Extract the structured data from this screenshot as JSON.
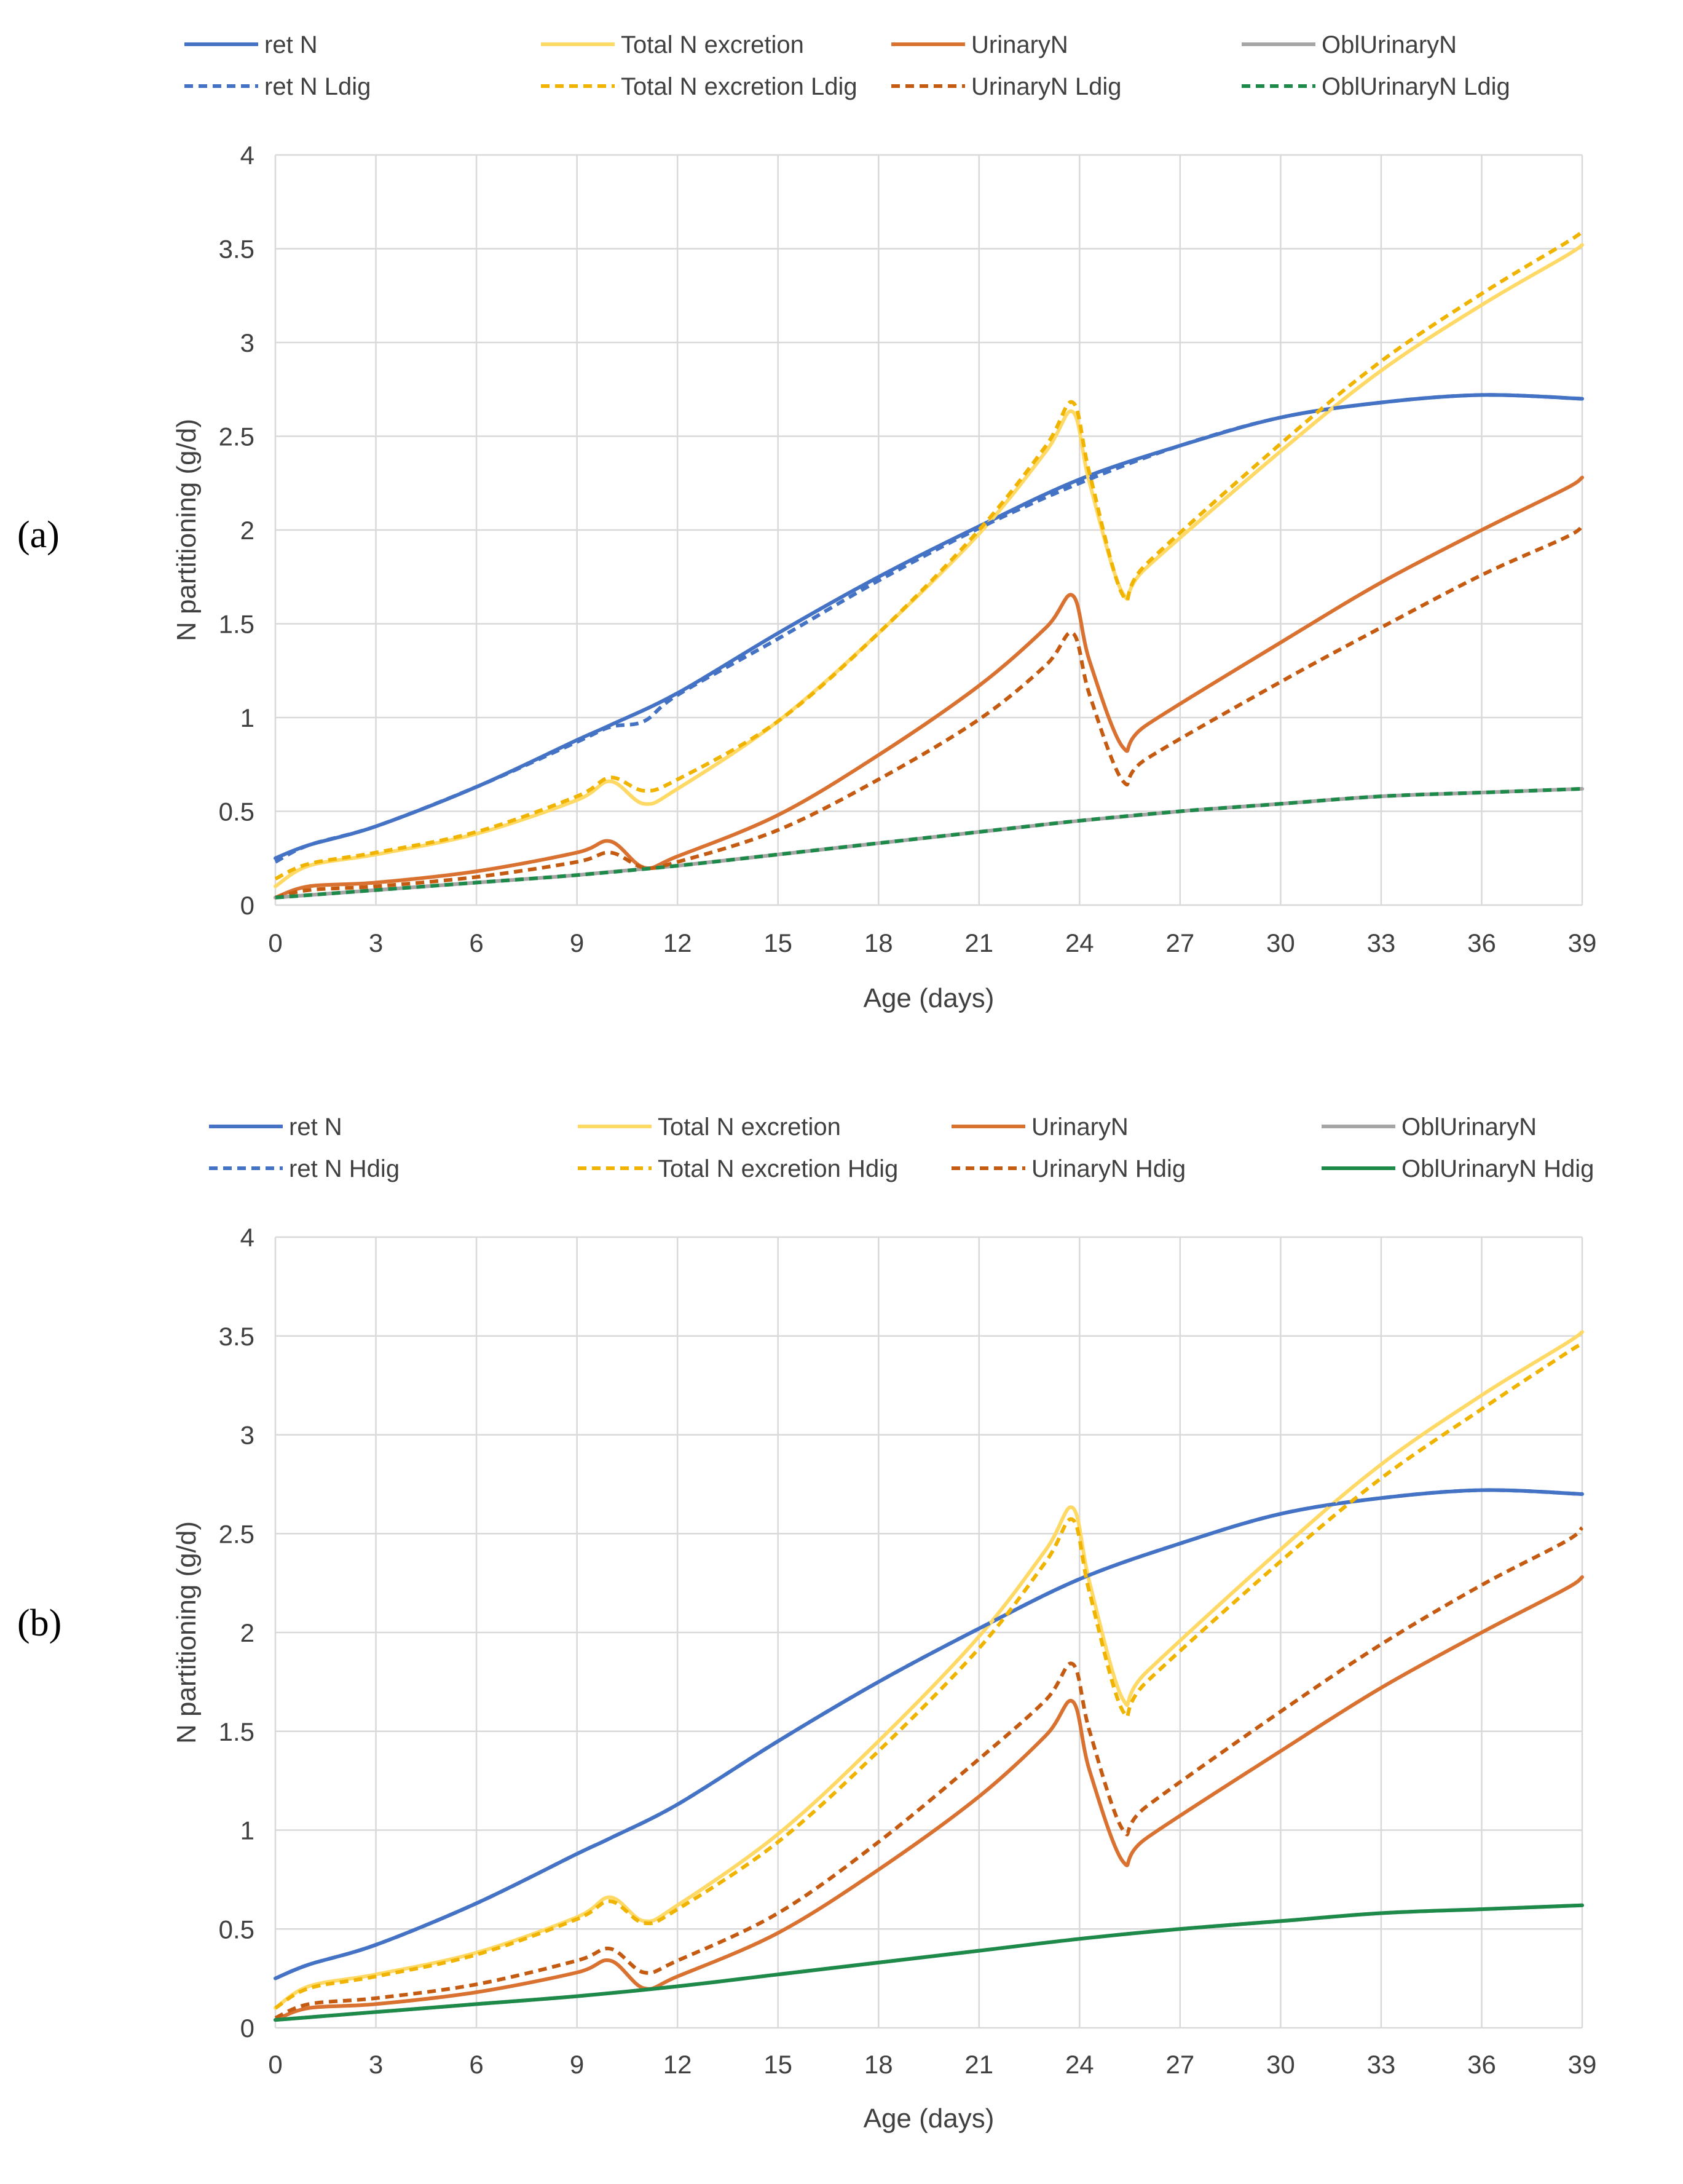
{
  "chart_data": [
    {
      "type": "line",
      "panel_label": "(a)",
      "xlabel": "Age (days)",
      "ylabel": "N partitioning (g/d)",
      "xlim": [
        0,
        39
      ],
      "ylim": [
        0,
        4
      ],
      "x_ticks": [
        "0",
        "3",
        "6",
        "9",
        "12",
        "15",
        "18",
        "21",
        "24",
        "27",
        "30",
        "33",
        "36",
        "39"
      ],
      "y_ticks": [
        "0",
        "0.5",
        "1",
        "1.5",
        "2",
        "2.5",
        "3",
        "3.5",
        "4"
      ],
      "grid": true,
      "legend_position": "top",
      "legend": [
        "ret N",
        "Total N excretion",
        "UrinaryN",
        "OblUrinaryN",
        "ret N Ldig",
        "Total N excretion Ldig",
        "UrinaryN Ldig",
        "OblUrinaryN Ldig"
      ],
      "series": [
        {
          "name": "ret N",
          "color": "#4472c4",
          "dash": false,
          "x": [
            0,
            1,
            3,
            6,
            9,
            10,
            12,
            15,
            18,
            21,
            24,
            27,
            30,
            33,
            36,
            39
          ],
          "y": [
            0.25,
            0.32,
            0.42,
            0.63,
            0.88,
            0.96,
            1.13,
            1.45,
            1.75,
            2.02,
            2.27,
            2.45,
            2.6,
            2.68,
            2.72,
            2.7
          ]
        },
        {
          "name": "Total N excretion",
          "color": "#ffd966",
          "dash": false,
          "x": [
            0,
            1,
            3,
            6,
            9,
            10,
            11,
            12,
            15,
            18,
            21,
            23,
            23.8,
            24.3,
            25.3,
            26,
            30,
            33,
            36,
            38.5,
            39
          ],
          "y": [
            0.1,
            0.21,
            0.27,
            0.38,
            0.56,
            0.66,
            0.54,
            0.62,
            0.98,
            1.45,
            1.98,
            2.42,
            2.63,
            2.25,
            1.66,
            1.8,
            2.42,
            2.85,
            3.2,
            3.46,
            3.52
          ]
        },
        {
          "name": "UrinaryN",
          "color": "#d97231",
          "dash": false,
          "x": [
            0,
            1,
            3,
            6,
            9,
            10,
            11,
            12,
            15,
            18,
            21,
            23,
            23.8,
            24.3,
            25.3,
            26,
            30,
            33,
            36,
            38.5,
            39
          ],
          "y": [
            0.04,
            0.1,
            0.12,
            0.18,
            0.28,
            0.34,
            0.2,
            0.26,
            0.48,
            0.8,
            1.17,
            1.48,
            1.65,
            1.3,
            0.84,
            0.96,
            1.4,
            1.72,
            2.0,
            2.22,
            2.28
          ]
        },
        {
          "name": "OblUrinaryN",
          "color": "#a5a5a5",
          "dash": false,
          "x": [
            0,
            3,
            6,
            9,
            12,
            15,
            18,
            21,
            24,
            27,
            30,
            33,
            36,
            39
          ],
          "y": [
            0.04,
            0.08,
            0.12,
            0.16,
            0.21,
            0.27,
            0.33,
            0.39,
            0.45,
            0.5,
            0.54,
            0.58,
            0.6,
            0.62
          ]
        },
        {
          "name": "ret N Ldig",
          "color": "#4472c4",
          "dash": true,
          "x": [
            0,
            1,
            3,
            6,
            9,
            10,
            11,
            12,
            15,
            18,
            21,
            24,
            27,
            30,
            33,
            36,
            39
          ],
          "y": [
            0.23,
            0.32,
            0.42,
            0.63,
            0.87,
            0.95,
            0.98,
            1.12,
            1.42,
            1.73,
            2.01,
            2.25,
            2.45,
            2.6,
            2.68,
            2.72,
            2.7
          ]
        },
        {
          "name": "Total N excretion Ldig",
          "color": "#f0b400",
          "dash": true,
          "x": [
            0,
            1,
            3,
            6,
            9,
            10,
            11,
            12,
            15,
            18,
            21,
            23,
            23.8,
            24.3,
            25.3,
            26,
            30,
            33,
            36,
            38.5,
            39
          ],
          "y": [
            0.14,
            0.22,
            0.28,
            0.39,
            0.58,
            0.68,
            0.61,
            0.67,
            0.98,
            1.45,
            2.0,
            2.45,
            2.68,
            2.3,
            1.65,
            1.82,
            2.46,
            2.9,
            3.26,
            3.53,
            3.59
          ]
        },
        {
          "name": "UrinaryN Ldig",
          "color": "#c55a11",
          "dash": true,
          "x": [
            0,
            1,
            3,
            6,
            9,
            10,
            11,
            12,
            15,
            18,
            21,
            23,
            23.8,
            24.3,
            25.3,
            26,
            30,
            33,
            36,
            38.5,
            39
          ],
          "y": [
            0.04,
            0.08,
            0.1,
            0.15,
            0.23,
            0.28,
            0.2,
            0.23,
            0.4,
            0.67,
            0.99,
            1.28,
            1.45,
            1.12,
            0.66,
            0.78,
            1.19,
            1.48,
            1.76,
            1.96,
            2.02
          ]
        },
        {
          "name": "OblUrinaryN Ldig",
          "color": "#1e8a4a",
          "dash": true,
          "x": [
            0,
            3,
            6,
            9,
            12,
            15,
            18,
            21,
            24,
            27,
            30,
            33,
            36,
            39
          ],
          "y": [
            0.04,
            0.08,
            0.12,
            0.16,
            0.21,
            0.27,
            0.33,
            0.39,
            0.45,
            0.5,
            0.54,
            0.58,
            0.6,
            0.62
          ]
        }
      ]
    },
    {
      "type": "line",
      "panel_label": "(b)",
      "xlabel": "Age (days)",
      "ylabel": "N partitioning (g/d)",
      "xlim": [
        0,
        39
      ],
      "ylim": [
        0,
        4
      ],
      "x_ticks": [
        "0",
        "3",
        "6",
        "9",
        "12",
        "15",
        "18",
        "21",
        "24",
        "27",
        "30",
        "33",
        "36",
        "39"
      ],
      "y_ticks": [
        "0",
        "0.5",
        "1",
        "1.5",
        "2",
        "2.5",
        "3",
        "3.5",
        "4"
      ],
      "grid": true,
      "legend_position": "top",
      "legend": [
        "ret N",
        "Total N excretion",
        "UrinaryN",
        "OblUrinaryN",
        "ret N Hdig",
        "Total N excretion Hdig",
        "UrinaryN Hdig",
        "OblUrinaryN Hdig"
      ],
      "series": [
        {
          "name": "ret N",
          "color": "#4472c4",
          "dash": false,
          "x": [
            0,
            1,
            3,
            6,
            9,
            10,
            12,
            15,
            18,
            21,
            24,
            27,
            30,
            33,
            36,
            39
          ],
          "y": [
            0.25,
            0.32,
            0.42,
            0.63,
            0.88,
            0.96,
            1.13,
            1.45,
            1.75,
            2.02,
            2.27,
            2.45,
            2.6,
            2.68,
            2.72,
            2.7
          ]
        },
        {
          "name": "Total N excretion",
          "color": "#ffd966",
          "dash": false,
          "x": [
            0,
            1,
            3,
            6,
            9,
            10,
            11,
            12,
            15,
            18,
            21,
            23,
            23.8,
            24.3,
            25.3,
            26,
            30,
            33,
            36,
            38.5,
            39
          ],
          "y": [
            0.1,
            0.21,
            0.27,
            0.38,
            0.56,
            0.66,
            0.54,
            0.62,
            0.98,
            1.45,
            1.98,
            2.42,
            2.63,
            2.25,
            1.66,
            1.8,
            2.42,
            2.85,
            3.2,
            3.46,
            3.52
          ]
        },
        {
          "name": "UrinaryN",
          "color": "#d97231",
          "dash": false,
          "x": [
            0,
            1,
            3,
            6,
            9,
            10,
            11,
            12,
            15,
            18,
            21,
            23,
            23.8,
            24.3,
            25.3,
            26,
            30,
            33,
            36,
            38.5,
            39
          ],
          "y": [
            0.04,
            0.1,
            0.12,
            0.18,
            0.28,
            0.34,
            0.2,
            0.26,
            0.48,
            0.8,
            1.17,
            1.48,
            1.65,
            1.3,
            0.84,
            0.96,
            1.4,
            1.72,
            2.0,
            2.22,
            2.28
          ]
        },
        {
          "name": "OblUrinaryN",
          "color": "#a5a5a5",
          "dash": false,
          "x": [
            0,
            3,
            6,
            9,
            12,
            15,
            18,
            21,
            24,
            27,
            30,
            33,
            36,
            39
          ],
          "y": [
            0.04,
            0.08,
            0.12,
            0.16,
            0.21,
            0.27,
            0.33,
            0.39,
            0.45,
            0.5,
            0.54,
            0.58,
            0.6,
            0.62
          ]
        },
        {
          "name": "ret N Hdig",
          "color": "#4472c4",
          "dash": true,
          "x": [
            0,
            1,
            3,
            6,
            9,
            10,
            12,
            15,
            18,
            21,
            24,
            27,
            30,
            33,
            36,
            39
          ],
          "y": [
            0.25,
            0.32,
            0.42,
            0.63,
            0.88,
            0.96,
            1.13,
            1.45,
            1.75,
            2.02,
            2.27,
            2.45,
            2.6,
            2.68,
            2.72,
            2.7
          ]
        },
        {
          "name": "Total N excretion Hdig",
          "color": "#f0b400",
          "dash": true,
          "x": [
            0,
            1,
            3,
            6,
            9,
            10,
            11,
            12,
            15,
            18,
            21,
            23,
            23.8,
            24.3,
            25.3,
            26,
            30,
            33,
            36,
            38.5,
            39
          ],
          "y": [
            0.1,
            0.2,
            0.26,
            0.37,
            0.55,
            0.64,
            0.53,
            0.6,
            0.94,
            1.4,
            1.92,
            2.36,
            2.57,
            2.2,
            1.6,
            1.75,
            2.36,
            2.78,
            3.13,
            3.41,
            3.46
          ]
        },
        {
          "name": "UrinaryN Hdig",
          "color": "#c55a11",
          "dash": true,
          "x": [
            0,
            1,
            3,
            6,
            9,
            10,
            11,
            12,
            15,
            18,
            21,
            23,
            23.8,
            24.3,
            25.3,
            26,
            30,
            33,
            36,
            38.5,
            39
          ],
          "y": [
            0.05,
            0.12,
            0.15,
            0.22,
            0.34,
            0.4,
            0.28,
            0.34,
            0.58,
            0.94,
            1.36,
            1.66,
            1.84,
            1.5,
            1.0,
            1.12,
            1.6,
            1.94,
            2.24,
            2.46,
            2.53
          ]
        },
        {
          "name": "OblUrinaryN Hdig",
          "color": "#1e8a4a",
          "dash": false,
          "x": [
            0,
            3,
            6,
            9,
            12,
            15,
            18,
            21,
            24,
            27,
            30,
            33,
            36,
            39
          ],
          "y": [
            0.04,
            0.08,
            0.12,
            0.16,
            0.21,
            0.27,
            0.33,
            0.39,
            0.45,
            0.5,
            0.54,
            0.58,
            0.6,
            0.62
          ]
        }
      ]
    }
  ]
}
